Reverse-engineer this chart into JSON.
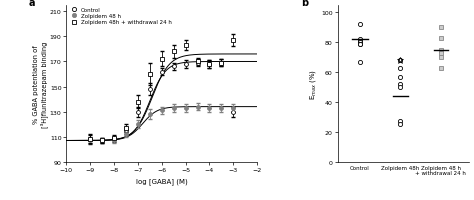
{
  "panel_a": {
    "xlabel": "log [GABA] (M)",
    "ylabel": "% GABA potentiation of\n[³H]flunitrazepam binding",
    "ylim": [
      90,
      215
    ],
    "xlim": [
      -10,
      -2
    ],
    "yticks": [
      90,
      110,
      130,
      150,
      170,
      190,
      210
    ],
    "xticks": [
      -10,
      -9,
      -8,
      -7,
      -6,
      -5,
      -4,
      -3,
      -2
    ],
    "legend": [
      "Control",
      "Zolpidem 48 h",
      "Zolpidem 48h + withdrawal 24 h"
    ],
    "control": {
      "x": [
        -9,
        -8.5,
        -8,
        -7.5,
        -7,
        -6.5,
        -6,
        -5.5,
        -5,
        -4.5,
        -4,
        -3.5,
        -3
      ],
      "y": [
        108,
        107,
        108,
        115,
        130,
        148,
        162,
        166,
        168,
        169,
        168,
        169,
        130
      ],
      "yerr": [
        4,
        2,
        2,
        3,
        4,
        5,
        3,
        3,
        3,
        3,
        3,
        3,
        4
      ],
      "ec50": -6.5,
      "emax": 170,
      "emin": 107,
      "hill": 1.3
    },
    "zolpidem48": {
      "x": [
        -9,
        -8.5,
        -8,
        -7.5,
        -7,
        -6.5,
        -6,
        -5.5,
        -5,
        -4.5,
        -4,
        -3.5,
        -3
      ],
      "y": [
        107,
        107,
        107,
        112,
        120,
        128,
        131,
        133,
        133,
        134,
        133,
        133,
        133
      ],
      "yerr": [
        2,
        2,
        2,
        2,
        3,
        4,
        3,
        3,
        3,
        3,
        3,
        3,
        3
      ],
      "ec50": -6.8,
      "emax": 134,
      "emin": 107,
      "hill": 1.4
    },
    "withdrawal": {
      "x": [
        -9,
        -8.5,
        -8,
        -7.5,
        -7,
        -6.5,
        -6,
        -5.5,
        -5,
        -4.5,
        -4,
        -3.5,
        -3
      ],
      "y": [
        108,
        107,
        109,
        117,
        138,
        160,
        172,
        178,
        183,
        170,
        168,
        169,
        187
      ],
      "yerr": [
        3,
        2,
        2,
        3,
        5,
        9,
        6,
        5,
        4,
        3,
        3,
        3,
        5
      ],
      "ec50": -6.4,
      "emax": 176,
      "emin": 107,
      "hill": 1.2
    }
  },
  "panel_b": {
    "ylabel": "E$_{max}$ (%)",
    "ylim": [
      0,
      105
    ],
    "yticks": [
      0,
      20,
      40,
      60,
      80,
      100
    ],
    "control_points": [
      82,
      81,
      80,
      79,
      79,
      92,
      67
    ],
    "control_mean": 82,
    "zolpidem_points": [
      68,
      63,
      57,
      52,
      50,
      27,
      25
    ],
    "zolpidem_mean": 44,
    "zolpidem_star_y": 68,
    "withdrawal_points": [
      90,
      83,
      75,
      73,
      70,
      63
    ],
    "withdrawal_mean": 75
  }
}
